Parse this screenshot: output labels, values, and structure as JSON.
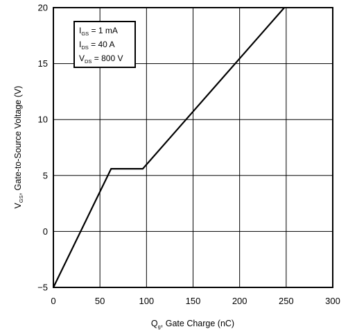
{
  "chart_data": {
    "type": "line",
    "title": "",
    "xlabel": {
      "symbol": "Q",
      "sub": "g",
      "rest": ", Gate Charge (nC)"
    },
    "ylabel": {
      "symbol": "V",
      "sub": "GS",
      "rest": ", Gate-to-Source Voltage (V)"
    },
    "xlim": [
      0,
      300
    ],
    "ylim": [
      -5,
      20
    ],
    "x_ticks": [
      0,
      50,
      100,
      150,
      200,
      250,
      300
    ],
    "y_ticks": [
      -5,
      0,
      5,
      10,
      15,
      20
    ],
    "x_tick_labels": [
      "0",
      "50",
      "100",
      "150",
      "200",
      "250",
      "300"
    ],
    "y_tick_labels": [
      "−5",
      "0",
      "5",
      "10",
      "15",
      "20"
    ],
    "grid": true,
    "legend_position": "top-left",
    "conditions": [
      {
        "symbol": "I",
        "sub": "GS",
        "rest": " = 1 mA"
      },
      {
        "symbol": "I",
        "sub": "DS",
        "rest": " = 40 A"
      },
      {
        "symbol": "V",
        "sub": "DS",
        "rest": " = 800 V"
      }
    ],
    "series": [
      {
        "x": [
          0,
          62,
          96,
          248
        ],
        "y": [
          -5,
          5.6,
          5.6,
          20
        ]
      }
    ],
    "colors": {
      "line": "#000000",
      "grid": "#000000",
      "frame": "#000000"
    }
  }
}
